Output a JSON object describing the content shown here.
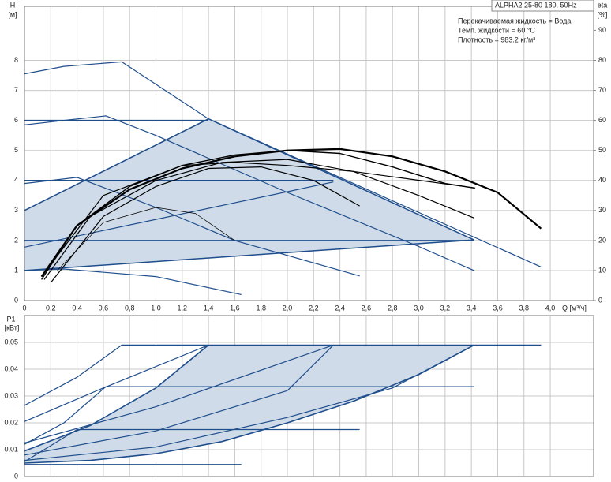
{
  "chart_data": [
    {
      "type": "line",
      "annotations": [
        "ALPHA2 25-80 180, 50Hz",
        "Перекачиваемая жидкость = Вода",
        "Темп. жидкости = 60 °C",
        "Плотность = 983.2 кг/м³"
      ],
      "ylabel": "H",
      "yunit": "[м]",
      "y2label": "eta",
      "y2unit": "[%]",
      "xlabel": "Q [м³/ч]",
      "xlim": [
        0,
        4.33
      ],
      "ylim": [
        0,
        9.8
      ],
      "y2lim": [
        0,
        98
      ],
      "xticks": [
        0,
        {
          "value": 0.2,
          "label": "0,2"
        },
        {
          "value": 0.4,
          "label": "0,4"
        },
        {
          "value": 0.6,
          "label": "0,6"
        },
        {
          "value": 0.8,
          "label": "0,8"
        },
        {
          "value": 1.0,
          "label": "1,0"
        },
        {
          "value": 1.2,
          "label": "1,2"
        },
        {
          "value": 1.4,
          "label": "1,4"
        },
        {
          "value": 1.6,
          "label": "1,6"
        },
        {
          "value": 1.8,
          "label": "1,8"
        },
        {
          "value": 2.0,
          "label": "2,0"
        },
        {
          "value": 2.2,
          "label": "2,2"
        },
        {
          "value": 2.4,
          "label": "2,4"
        },
        {
          "value": 2.6,
          "label": "2,6"
        },
        {
          "value": 2.8,
          "label": "2,8"
        },
        {
          "value": 3.0,
          "label": "3,0"
        },
        {
          "value": 3.2,
          "label": "3,2"
        },
        {
          "value": 3.4,
          "label": "3,4"
        },
        {
          "value": 3.6,
          "label": "3,6"
        },
        {
          "value": 3.8,
          "label": "3,8"
        },
        {
          "value": 4.0,
          "label": "4,0"
        }
      ],
      "yticks": [
        0,
        1,
        2,
        3,
        4,
        5,
        6,
        7,
        8
      ],
      "y2ticks": [
        0,
        10,
        20,
        30,
        40,
        50,
        60,
        70,
        80,
        90
      ],
      "grid": true,
      "show_xtick_labels": true,
      "areas": [
        {
          "color": "#cfdbe8",
          "x": [
            0,
            0,
            1.4,
            3.42
          ],
          "values": [
            1.0,
            3.0,
            6.05,
            2.02
          ]
        }
      ],
      "series": [
        {
          "color": "#1f4e8c",
          "width": 1.2,
          "x": [
            0,
            0.3,
            0.74,
            1.4,
            3.93
          ],
          "values": [
            7.55,
            7.8,
            7.95,
            6.05,
            1.12
          ]
        },
        {
          "color": "#1f4e8c",
          "width": 1.2,
          "x": [
            0,
            0.3,
            0.62,
            1.0,
            2.0,
            3.0,
            3.42
          ],
          "values": [
            5.85,
            6.0,
            6.15,
            5.5,
            3.6,
            1.8,
            1.0
          ]
        },
        {
          "color": "#1f4e8c",
          "width": 1.2,
          "x": [
            0,
            0.4,
            1.0,
            1.6,
            2.55
          ],
          "values": [
            3.9,
            4.1,
            3.1,
            2.0,
            0.82
          ]
        },
        {
          "color": "#1f4e8c",
          "width": 1.2,
          "x": [
            0,
            0.3,
            1.0,
            1.65
          ],
          "values": [
            1.0,
            1.05,
            0.8,
            0.2
          ]
        },
        {
          "color": "#1f4e8c",
          "width": 1.5,
          "x": [
            0,
            1.4
          ],
          "values": [
            6.0,
            6.0
          ]
        },
        {
          "color": "#1f4e8c",
          "width": 1.5,
          "x": [
            0,
            2.35
          ],
          "values": [
            4.0,
            4.0
          ]
        },
        {
          "color": "#1f4e8c",
          "width": 1.5,
          "x": [
            0,
            3.42
          ],
          "values": [
            2.0,
            2.0
          ]
        },
        {
          "color": "#1f4e8c",
          "width": 1.5,
          "x": [
            0,
            1.4
          ],
          "values": [
            3.0,
            6.05
          ]
        },
        {
          "color": "#1f4e8c",
          "width": 1.2,
          "x": [
            0,
            2.35
          ],
          "values": [
            1.78,
            3.95
          ]
        },
        {
          "color": "#1f4e8c",
          "width": 1.5,
          "x": [
            0,
            3.42
          ],
          "values": [
            1.0,
            2.02
          ]
        },
        {
          "color": "#1f4e8c",
          "width": 1.5,
          "x": [
            1.4,
            3.42
          ],
          "values": [
            6.05,
            2.02
          ]
        },
        {
          "color": "#000000",
          "width": 2.2,
          "axis": "y2",
          "x": [
            0.13,
            0.4,
            0.8,
            1.2,
            1.6,
            2.0,
            2.4,
            2.8,
            3.2,
            3.6,
            3.93
          ],
          "values": [
            8,
            25,
            37,
            44,
            48,
            50,
            50.5,
            48,
            43,
            36,
            24
          ]
        },
        {
          "color": "#000000",
          "width": 1.4,
          "axis": "y2",
          "x": [
            0.13,
            0.4,
            0.8,
            1.2,
            1.6,
            2.0,
            2.4,
            2.8,
            3.2,
            3.42
          ],
          "values": [
            7,
            25,
            38,
            45,
            48.5,
            50,
            49,
            44.5,
            39,
            37.5
          ]
        },
        {
          "color": "#000000",
          "width": 1.2,
          "axis": "y2",
          "x": [
            0.15,
            0.5,
            1.0,
            1.5,
            2.0,
            2.5,
            3.0,
            3.42
          ],
          "values": [
            7,
            28,
            40,
            46,
            47,
            43,
            35,
            27.5
          ]
        },
        {
          "color": "#000000",
          "width": 1.2,
          "axis": "y2",
          "x": [
            0.2,
            0.6,
            1.0,
            1.4,
            1.8,
            2.2,
            2.55
          ],
          "values": [
            6,
            28,
            38,
            44,
            44.5,
            40,
            31.5
          ]
        },
        {
          "color": "#000000",
          "width": 1.2,
          "axis": "y2",
          "x": [
            0.13,
            0.6,
            1.2,
            1.6,
            2.0,
            2.5,
            3.43
          ],
          "values": [
            8,
            35,
            45,
            46,
            45,
            43,
            37.5
          ]
        },
        {
          "color": "#000000",
          "width": 0.7,
          "axis": "y2",
          "x": [
            0.25,
            0.6,
            1.0,
            1.3,
            1.6
          ],
          "values": [
            10,
            26,
            31,
            29,
            20
          ]
        }
      ]
    },
    {
      "type": "line",
      "ylabel": "P1",
      "yunit": "[кВт]",
      "xlim": [
        0,
        4.33
      ],
      "ylim": [
        0,
        0.06
      ],
      "xticks": [
        0,
        0.2,
        0.4,
        0.6,
        0.8,
        1.0,
        1.2,
        1.4,
        1.6,
        1.8,
        2.0,
        2.2,
        2.4,
        2.6,
        2.8,
        3.0,
        3.2,
        3.4,
        3.6,
        3.8,
        4.0
      ],
      "yticks": [
        0,
        {
          "value": 0.01,
          "label": "0,01"
        },
        {
          "value": 0.02,
          "label": "0,02"
        },
        {
          "value": 0.03,
          "label": "0,03"
        },
        {
          "value": 0.04,
          "label": "0,04"
        },
        {
          "value": 0.05,
          "label": "0,05"
        }
      ],
      "grid": true,
      "show_xtick_labels": false,
      "areas": [
        {
          "color": "#cfdbe8",
          "x": [
            0,
            0.5,
            1.0,
            1.4,
            3.42,
            3.0,
            2.5,
            2.0,
            1.5,
            1.0,
            0.5,
            0
          ],
          "values": [
            0.0095,
            0.019,
            0.033,
            0.049,
            0.049,
            0.038,
            0.028,
            0.02,
            0.013,
            0.0085,
            0.006,
            0.005
          ]
        }
      ],
      "series": [
        {
          "color": "#1f4e8c",
          "width": 1.2,
          "x": [
            0,
            0.4,
            0.74,
            3.93
          ],
          "values": [
            0.0265,
            0.037,
            0.049,
            0.049
          ]
        },
        {
          "color": "#1f4e8c",
          "width": 1.2,
          "x": [
            0,
            0.3,
            0.62,
            3.42
          ],
          "values": [
            0.012,
            0.02,
            0.0335,
            0.0335
          ]
        },
        {
          "color": "#1f4e8c",
          "width": 1.2,
          "x": [
            0,
            0.4,
            2.55
          ],
          "values": [
            0.0055,
            0.0175,
            0.0175
          ]
        },
        {
          "color": "#1f4e8c",
          "width": 1.2,
          "x": [
            0,
            1.65
          ],
          "values": [
            0.0045,
            0.0045
          ]
        },
        {
          "color": "#1f4e8c",
          "width": 1.6,
          "x": [
            0,
            0.5,
            1.0,
            1.4
          ],
          "values": [
            0.0095,
            0.019,
            0.033,
            0.049
          ]
        },
        {
          "color": "#1f4e8c",
          "width": 1.2,
          "x": [
            0,
            0.6,
            1.4
          ],
          "values": [
            0.0205,
            0.033,
            0.049
          ]
        },
        {
          "color": "#1f4e8c",
          "width": 1.2,
          "x": [
            0,
            1.0,
            2.35
          ],
          "values": [
            0.0125,
            0.026,
            0.049
          ]
        },
        {
          "color": "#1f4e8c",
          "width": 1.2,
          "x": [
            0,
            1.0,
            2.0,
            2.35
          ],
          "values": [
            0.008,
            0.017,
            0.032,
            0.049
          ]
        },
        {
          "color": "#1f4e8c",
          "width": 1.6,
          "x": [
            0,
            0.5,
            1.0,
            1.5,
            2.0,
            2.5,
            3.0,
            3.42
          ],
          "values": [
            0.005,
            0.006,
            0.0085,
            0.013,
            0.02,
            0.028,
            0.038,
            0.049
          ]
        },
        {
          "color": "#1f4e8c",
          "width": 1.2,
          "x": [
            0,
            1.0,
            2.0,
            2.8,
            3.42
          ],
          "values": [
            0.006,
            0.011,
            0.022,
            0.033,
            0.049
          ]
        }
      ]
    }
  ]
}
